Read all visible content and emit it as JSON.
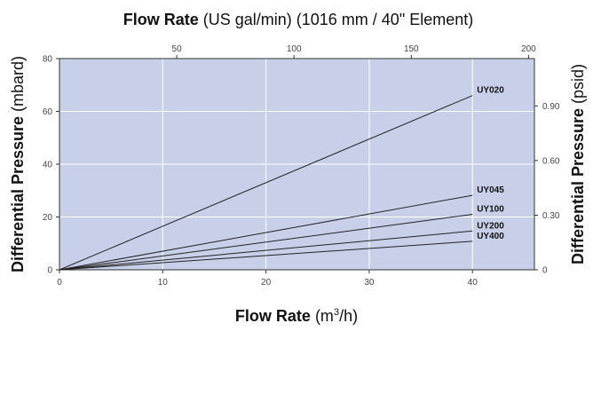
{
  "chart_data": {
    "type": "line",
    "x_bottom": {
      "label_bold": "Flow Rate",
      "label_rest": " (m",
      "label_sup": "3",
      "label_end": "/h)",
      "range": [
        0,
        46
      ],
      "ticks": [
        0,
        10,
        20,
        30,
        40
      ]
    },
    "x_top": {
      "label_bold": "Flow Rate",
      "label_rest": " (US gal/min) (1016 mm / 40\" Element)",
      "range": [
        0,
        202.5
      ],
      "ticks": [
        50,
        100,
        150,
        200
      ]
    },
    "y_left": {
      "label_bold": "Differential Pressure",
      "label_rest": " (mbard)",
      "range": [
        0,
        80
      ],
      "ticks": [
        0,
        20,
        40,
        60,
        80
      ]
    },
    "y_right": {
      "label_bold": "Differential Pressure",
      "label_rest": " (psid)",
      "range": [
        0,
        1.16
      ],
      "ticks": [
        0,
        0.3,
        0.6,
        0.9
      ],
      "tick_labels": [
        "0",
        "0.30",
        "0.60",
        "0.90"
      ]
    },
    "grid": true,
    "series": [
      {
        "name": "UY020",
        "x": [
          0,
          40
        ],
        "y": [
          0,
          66
        ]
      },
      {
        "name": "UY045",
        "x": [
          0,
          40
        ],
        "y": [
          0,
          28.2
        ]
      },
      {
        "name": "UY100",
        "x": [
          0,
          40
        ],
        "y": [
          0,
          21
        ]
      },
      {
        "name": "UY200",
        "x": [
          0,
          40
        ],
        "y": [
          0,
          14.7
        ]
      },
      {
        "name": "UY400",
        "x": [
          0,
          40
        ],
        "y": [
          0,
          10.8
        ]
      }
    ],
    "colors": {
      "plot_bg": "#c8d0e9",
      "grid": "#ffffff",
      "line": "#222222"
    }
  }
}
